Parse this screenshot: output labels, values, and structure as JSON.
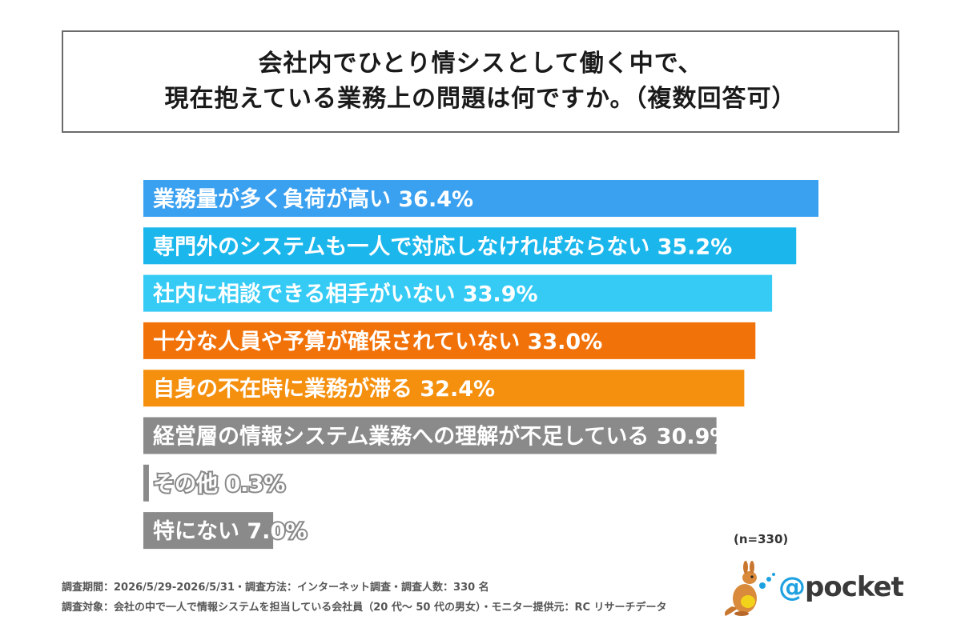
{
  "title": {
    "line1": "会社内でひとり情シスとして働く中で、",
    "line2": "現在抱えている業務上の問題は何ですか。（複数回答可）"
  },
  "chart_data": {
    "type": "bar",
    "orientation": "horizontal",
    "unit": "%",
    "xlim": [
      0,
      40
    ],
    "categories": [
      "業務量が多く負荷が高い",
      "専門外のシステムも一人で対応しなければならない",
      "社内に相談できる相手がいない",
      "十分な人員や予算が確保されていない",
      "自身の不在時に業務が滞る",
      "経営層の情報システム業務への理解が不足している",
      "その他",
      "特にない"
    ],
    "values": [
      36.4,
      35.2,
      33.9,
      33.0,
      32.4,
      30.9,
      0.3,
      7.0
    ],
    "value_labels": [
      "36.4%",
      "35.2%",
      "33.9%",
      "33.0%",
      "32.4%",
      "30.9%",
      "0.3%",
      "7.0%"
    ],
    "colors": [
      "#3aa0f0",
      "#1ab6ec",
      "#35cbf5",
      "#f2720a",
      "#f5900f",
      "#8a8a8a",
      "#8a8a8a",
      "#8a8a8a"
    ],
    "grid": false,
    "legend": "none"
  },
  "sample_size": "(n=330)",
  "footnotes": {
    "line1": "調査期間：2026/5/29-2026/5/31・調査方法：インターネット調査・調査人数：330 名",
    "line2": "調査対象：会社の中で一人で情報システムを担当している会社員（20 代～ 50 代の男女）・モニター提供元：RC リサーチデータ"
  },
  "logo": {
    "at": "@",
    "word": "pocket",
    "brand_color": "#1ea1e0"
  }
}
